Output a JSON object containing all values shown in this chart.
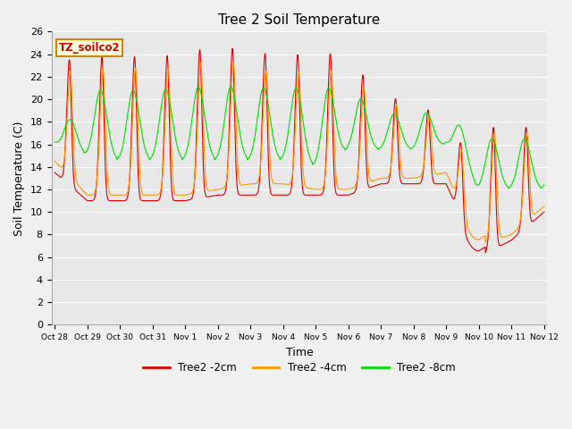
{
  "title": "Tree 2 Soil Temperature",
  "xlabel": "Time",
  "ylabel": "Soil Temperature (C)",
  "legend_label": "TZ_soilco2",
  "ylim": [
    0,
    26
  ],
  "series": {
    "2cm": {
      "color": "#dd0000",
      "label": "Tree2 -2cm"
    },
    "4cm": {
      "color": "#ff9900",
      "label": "Tree2 -4cm"
    },
    "8cm": {
      "color": "#00dd00",
      "label": "Tree2 -8cm"
    }
  },
  "x_tick_labels": [
    "Oct 28",
    "Oct 29",
    "Oct 30",
    "Oct 31",
    "Nov 1",
    "Nov 2",
    "Nov 3",
    "Nov 4",
    "Nov 5",
    "Nov 6",
    "Nov 7",
    "Nov 8",
    "Nov 9",
    "Nov 10",
    "Nov 11",
    "Nov 12"
  ],
  "fig_facecolor": "#f0f0f0",
  "ax_facecolor": "#e8e8e8",
  "grid_color": "#ffffff"
}
